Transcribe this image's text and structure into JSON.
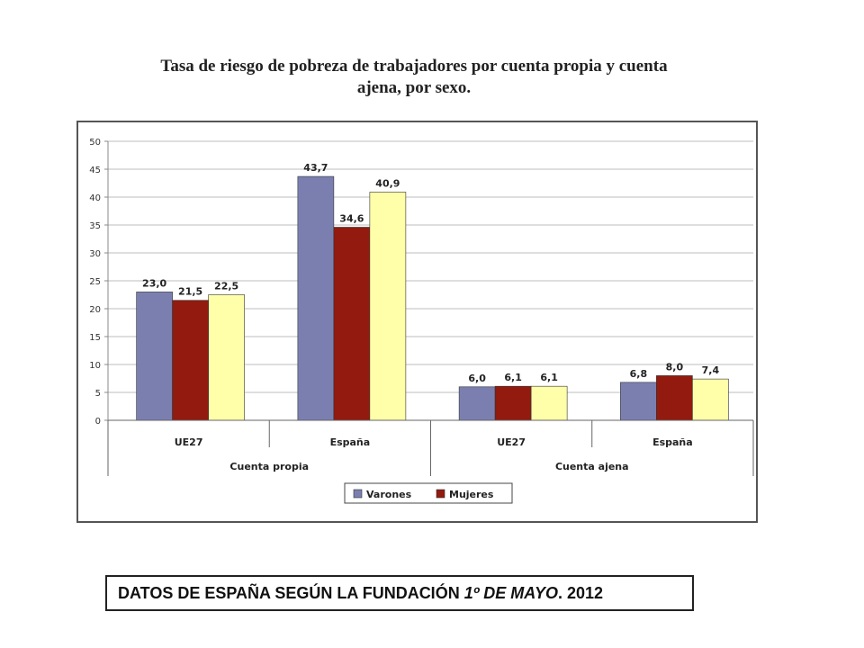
{
  "title_line1": "Tasa de riesgo de pobreza de trabajadores por cuenta propia y cuenta",
  "title_line2": "ajena, por sexo.",
  "caption": {
    "part1": "DATOS DE ESPAÑA  SEGÚN  LA FUNDACIÓN ",
    "part2_italic": "1º DE MAYO",
    "part3": ". 2012"
  },
  "chart_data": {
    "type": "bar",
    "title": "Tasa de riesgo de pobreza de trabajadores por cuenta propia y cuenta ajena, por sexo.",
    "groups": [
      "Cuenta propia",
      "Cuenta ajena"
    ],
    "categories": [
      "UE27",
      "España",
      "UE27",
      "España"
    ],
    "category_group": [
      0,
      0,
      1,
      1
    ],
    "series": [
      {
        "name": "Varones",
        "color": "#7b7fb0",
        "values": [
          23.0,
          43.7,
          6.0,
          6.8
        ]
      },
      {
        "name": "Mujeres",
        "color": "#921a0e",
        "values": [
          21.5,
          34.6,
          6.1,
          8.0
        ]
      },
      {
        "name": "",
        "color": "#ffffaa",
        "values": [
          22.5,
          40.9,
          6.1,
          7.4
        ]
      }
    ],
    "data_labels": [
      [
        "23,0",
        "43,7",
        "6,0",
        "6,8"
      ],
      [
        "21,5",
        "34,6",
        "6,1",
        "8,0"
      ],
      [
        "22,5",
        "40,9",
        "6,1",
        "7,4"
      ]
    ],
    "ylim": [
      0,
      50
    ],
    "yticks": [
      0,
      5,
      10,
      15,
      20,
      25,
      30,
      35,
      40,
      45,
      50
    ],
    "grid": true,
    "legend_position": "bottom",
    "xlabel": "",
    "ylabel": ""
  }
}
